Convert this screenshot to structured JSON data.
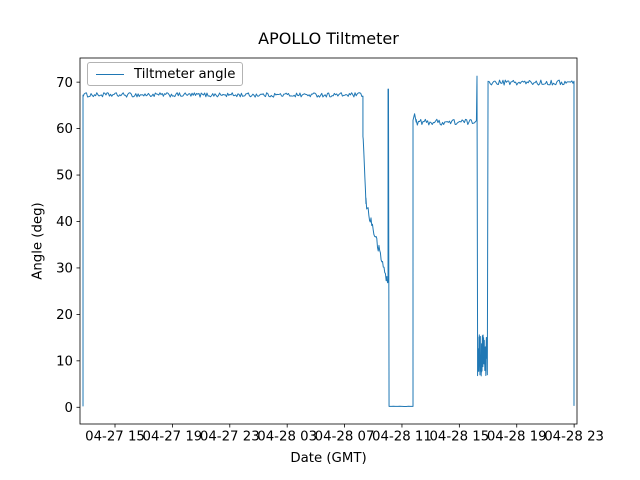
{
  "chart_data": {
    "type": "line",
    "title": "APOLLO Tiltmeter",
    "xlabel": "Date (GMT)",
    "ylabel": "Angle (deg)",
    "legend": [
      "Tiltmeter angle"
    ],
    "legend_position": "upper left",
    "grid": false,
    "line_color": "#1f77b4",
    "x_axis_unit": "hours since 04-27 00:00",
    "x_ticks_hours": [
      15,
      19,
      23,
      27,
      31,
      35,
      39,
      43,
      47
    ],
    "x_tick_labels": [
      "04-27 15",
      "04-27 19",
      "04-27 23",
      "04-28 03",
      "04-28 07",
      "04-28 11",
      "04-28 15",
      "04-28 19",
      "04-28 23"
    ],
    "y_ticks": [
      0,
      10,
      20,
      30,
      40,
      50,
      60,
      70
    ],
    "xlim_hours": [
      12.56,
      47.2
    ],
    "ylim": [
      -3.6,
      75.2
    ],
    "noise_seed": 1234,
    "series": [
      {
        "name": "Tiltmeter angle",
        "segments": [
          {
            "type": "path",
            "points": [
              [
                12.77,
                0.2
              ],
              [
                12.77,
                67.2
              ]
            ]
          },
          {
            "type": "noisy",
            "t0": 12.77,
            "t1": 32.28,
            "mean": 67.25,
            "amp": 0.48,
            "dt": 0.08
          },
          {
            "type": "path",
            "points": [
              [
                32.28,
                67.0
              ],
              [
                32.28,
                58.3
              ]
            ]
          },
          {
            "type": "noisy_ramp",
            "t0": 32.3,
            "v0": 57.8,
            "t1": 32.49,
            "v1": 44.0,
            "amp": 0.35,
            "dt": 0.035
          },
          {
            "type": "noisy_ramp",
            "t0": 32.49,
            "v0": 44.0,
            "t1": 33.95,
            "v1": 27.6,
            "amp": 1.1,
            "dt": 0.05
          },
          {
            "type": "path",
            "points": [
              [
                33.95,
                27.6
              ],
              [
                34.0,
                26.8
              ],
              [
                34.03,
                27.0
              ],
              [
                34.03,
                68.5
              ],
              [
                34.06,
                68.5
              ],
              [
                34.1,
                0.2
              ]
            ]
          },
          {
            "type": "noisy",
            "t0": 34.1,
            "t1": 35.77,
            "mean": 0.2,
            "amp": 0.03,
            "dt": 0.15
          },
          {
            "type": "path",
            "points": [
              [
                35.77,
                0.2
              ],
              [
                35.77,
                61.8
              ],
              [
                35.88,
                63.2
              ],
              [
                35.99,
                61.4
              ]
            ]
          },
          {
            "type": "noisy",
            "t0": 35.99,
            "t1": 40.09,
            "mean": 61.4,
            "amp": 0.65,
            "dt": 0.08
          },
          {
            "type": "path",
            "points": [
              [
                40.09,
                61.4
              ],
              [
                40.19,
                61.7
              ],
              [
                40.23,
                71.3
              ],
              [
                40.27,
                14.0
              ]
            ]
          },
          {
            "type": "noisy",
            "t0": 40.27,
            "t1": 40.95,
            "mean": 11.3,
            "amp": 4.6,
            "dt": 0.012
          },
          {
            "type": "path",
            "points": [
              [
                40.95,
                7.0
              ],
              [
                41.0,
                70.2
              ]
            ]
          },
          {
            "type": "noisy",
            "t0": 41.0,
            "t1": 46.98,
            "mean": 69.9,
            "amp": 0.55,
            "dt": 0.08
          },
          {
            "type": "path",
            "points": [
              [
                46.99,
                70.2
              ],
              [
                46.99,
                0.3
              ]
            ]
          }
        ]
      }
    ]
  }
}
